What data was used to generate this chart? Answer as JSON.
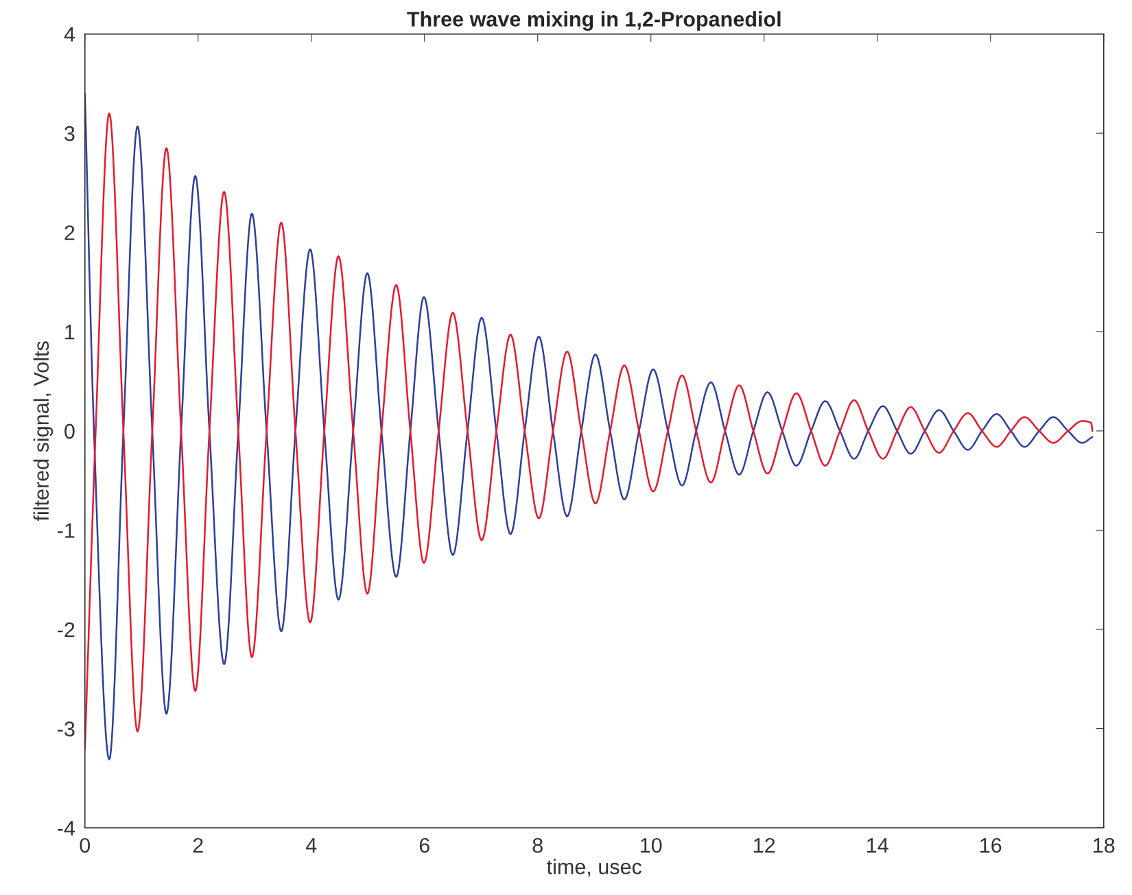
{
  "chart_data": {
    "type": "line",
    "title": "Three wave mixing in 1,2-Propanediol",
    "xlabel": "time, usec",
    "ylabel": "filtered signal, Volts",
    "xlim": [
      0,
      18
    ],
    "ylim": [
      -4,
      4
    ],
    "xticks": [
      0,
      2,
      4,
      6,
      8,
      10,
      12,
      14,
      16,
      18
    ],
    "yticks": [
      -4,
      -3,
      -2,
      -1,
      0,
      1,
      2,
      3,
      4
    ],
    "grid": false,
    "marker": "none",
    "line_style": "solid",
    "series": [
      {
        "color": "#2b3f9e",
        "x": [
          0,
          0.16,
          0.43,
          0.68,
          0.93,
          1.19,
          1.44,
          1.7,
          1.95,
          2.2,
          2.46,
          2.71,
          2.95,
          3.21,
          3.47,
          3.72,
          3.98,
          4.23,
          4.48,
          4.74,
          4.99,
          5.24,
          5.5,
          5.75,
          5.99,
          6.25,
          6.5,
          6.76,
          7.01,
          7.27,
          7.52,
          7.77,
          8.02,
          8.27,
          8.52,
          8.77,
          9.02,
          9.28,
          9.53,
          9.79,
          10.04,
          10.3,
          10.55,
          10.8,
          11.06,
          11.31,
          11.56,
          11.81,
          12.06,
          12.32,
          12.57,
          12.83,
          13.08,
          13.34,
          13.59,
          13.84,
          14.1,
          14.35,
          14.59,
          14.84,
          15.09,
          15.35,
          15.6,
          15.85,
          16.11,
          16.36,
          16.6,
          16.86,
          17.11,
          17.37,
          17.62,
          17.8
        ],
        "values": [
          3.4,
          0,
          -3.31,
          0,
          3.07,
          0,
          -2.85,
          0,
          2.57,
          0,
          -2.35,
          0,
          2.19,
          0,
          -2.02,
          0,
          1.83,
          0,
          -1.7,
          0,
          1.59,
          0,
          -1.47,
          0,
          1.35,
          0,
          -1.25,
          0,
          1.14,
          0,
          -1.04,
          0,
          0.95,
          0,
          -0.86,
          0,
          0.77,
          0,
          -0.69,
          0,
          0.62,
          0,
          -0.55,
          0,
          0.49,
          0,
          -0.44,
          0,
          0.39,
          0,
          -0.35,
          0,
          0.3,
          0,
          -0.28,
          0,
          0.25,
          0,
          -0.23,
          0,
          0.21,
          0,
          -0.19,
          0,
          0.17,
          0,
          -0.16,
          0,
          0.14,
          0,
          -0.12,
          -0.06
        ]
      },
      {
        "color": "#e8192c",
        "x": [
          0,
          0.19,
          0.43,
          0.68,
          0.93,
          1.19,
          1.44,
          1.7,
          1.95,
          2.2,
          2.46,
          2.71,
          2.95,
          3.21,
          3.47,
          3.72,
          3.98,
          4.23,
          4.48,
          4.74,
          4.99,
          5.24,
          5.5,
          5.75,
          5.99,
          6.25,
          6.5,
          6.76,
          7.01,
          7.27,
          7.52,
          7.77,
          8.02,
          8.27,
          8.52,
          8.77,
          9.02,
          9.28,
          9.53,
          9.79,
          10.04,
          10.3,
          10.55,
          10.8,
          11.06,
          11.31,
          11.56,
          11.81,
          12.06,
          12.32,
          12.57,
          12.83,
          13.08,
          13.34,
          13.59,
          13.84,
          14.1,
          14.35,
          14.59,
          14.84,
          15.09,
          15.35,
          15.6,
          15.85,
          16.11,
          16.36,
          16.6,
          16.86,
          17.11,
          17.37,
          17.62,
          17.78,
          17.8
        ],
        "values": [
          -3.2,
          0,
          3.2,
          0,
          -3.03,
          0,
          2.85,
          0,
          -2.62,
          0,
          2.41,
          0,
          -2.28,
          0,
          2.1,
          0,
          -1.93,
          0,
          1.76,
          0,
          -1.64,
          0,
          1.47,
          0,
          -1.33,
          0,
          1.19,
          0,
          -1.1,
          0,
          0.97,
          0,
          -0.88,
          0,
          0.8,
          0,
          -0.73,
          0,
          0.66,
          0,
          -0.61,
          0,
          0.56,
          0,
          -0.52,
          0,
          0.46,
          0,
          -0.43,
          0,
          0.38,
          0,
          -0.35,
          0,
          0.31,
          0,
          -0.28,
          0,
          0.24,
          0,
          -0.22,
          0,
          0.18,
          0,
          -0.16,
          0,
          0.14,
          0,
          -0.12,
          0,
          0.1,
          0.08,
          0
        ]
      }
    ]
  }
}
